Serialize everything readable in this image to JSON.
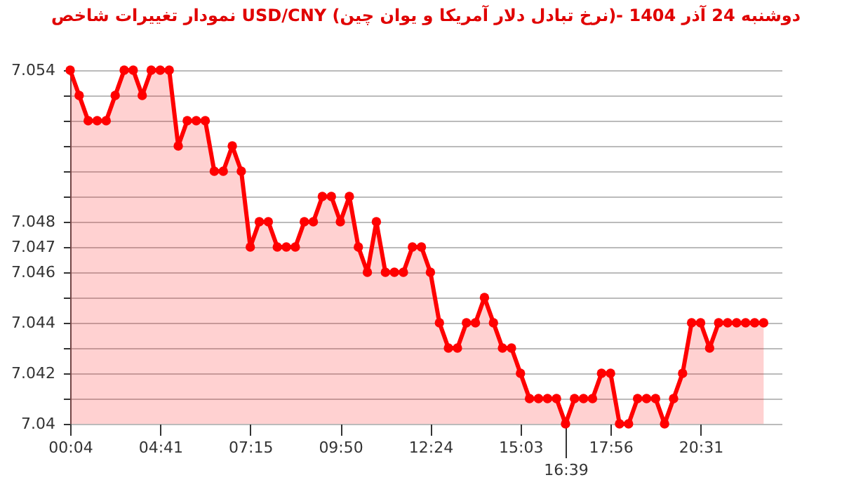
{
  "chart_data": {
    "type": "area",
    "title": "نمودار تغییرات شاخص USD/CNY (نرخ تبادل دلار آمریکا و یوان چین)- دوشنبه  24 آذر 1404",
    "categories": [
      "00:04",
      null,
      null,
      null,
      null,
      null,
      null,
      null,
      null,
      null,
      "04:41",
      null,
      null,
      null,
      null,
      null,
      null,
      null,
      null,
      null,
      "07:15",
      null,
      null,
      null,
      null,
      null,
      null,
      null,
      null,
      null,
      "09:50",
      null,
      null,
      null,
      null,
      null,
      null,
      null,
      null,
      null,
      "12:24",
      null,
      null,
      null,
      null,
      null,
      null,
      null,
      null,
      null,
      "15:03",
      null,
      null,
      null,
      null,
      "16:39",
      null,
      null,
      null,
      null,
      "17:56",
      null,
      null,
      null,
      null,
      null,
      null,
      null,
      null,
      null,
      "20:31",
      null,
      null,
      null,
      null,
      null,
      null,
      null
    ],
    "series": [
      {
        "color": "#ff0000",
        "values": [
          7.054,
          7.053,
          7.052,
          7.052,
          7.052,
          7.053,
          7.054,
          7.054,
          7.053,
          7.054,
          7.054,
          7.054,
          7.051,
          7.052,
          7.052,
          7.052,
          7.05,
          7.05,
          7.051,
          7.05,
          7.047,
          7.048,
          7.048,
          7.047,
          7.047,
          7.047,
          7.048,
          7.048,
          7.049,
          7.049,
          7.048,
          7.049,
          7.047,
          7.046,
          7.048,
          7.046,
          7.046,
          7.046,
          7.047,
          7.047,
          7.046,
          7.044,
          7.043,
          7.043,
          7.044,
          7.044,
          7.045,
          7.044,
          7.043,
          7.043,
          7.042,
          7.041,
          7.041,
          7.041,
          7.041,
          7.04,
          7.041,
          7.041,
          7.041,
          7.042,
          7.042,
          7.04,
          7.04,
          7.041,
          7.041,
          7.041,
          7.04,
          7.041,
          7.042,
          7.044,
          7.044,
          7.043,
          7.044,
          7.044,
          7.044,
          7.044,
          7.044,
          7.044
        ]
      }
    ],
    "ylim": [
      7.04,
      7.054
    ],
    "yticks": [
      7.04,
      {
        "value": 7.041,
        "label": null
      },
      7.042,
      {
        "value": 7.043,
        "label": null
      },
      7.044,
      {
        "value": 7.045,
        "label": null
      },
      7.046,
      7.047,
      7.048,
      {
        "value": 7.049,
        "label": null
      },
      {
        "value": 7.05,
        "label": null
      },
      {
        "value": 7.051,
        "label": null
      },
      {
        "value": 7.052,
        "label": null
      },
      {
        "value": 7.053,
        "label": null
      },
      7.054
    ],
    "grid": "y",
    "marker": "circle",
    "line_style": "solid"
  }
}
